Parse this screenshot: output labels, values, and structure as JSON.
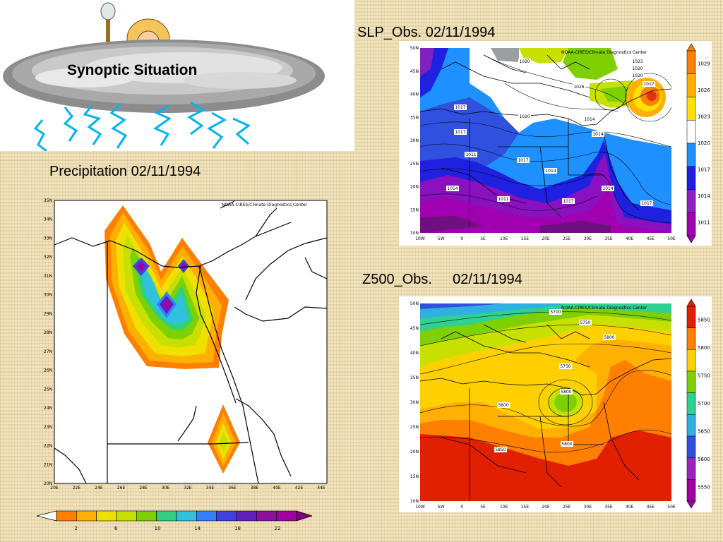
{
  "header": {
    "title": "Synoptic Situation"
  },
  "captions": {
    "precip": "Precipitation 02/11/1994",
    "slp": "SLP_Obs. 02/11/1994",
    "z500_left": "Z500_Obs.",
    "z500_right": "02/11/1994"
  },
  "credit": "NOAA-CIRES/Climate Diagnostics Center",
  "precip_map": {
    "y_ticks": [
      "35N",
      "34N",
      "33N",
      "32N",
      "31N",
      "30N",
      "29N",
      "28N",
      "27N",
      "26N",
      "25N",
      "24N",
      "23N",
      "22N",
      "21N",
      "20N"
    ],
    "x_ticks": [
      "20E",
      "22E",
      "24E",
      "26E",
      "28E",
      "30E",
      "32E",
      "34E",
      "36E",
      "38E",
      "40E",
      "42E",
      "44E"
    ],
    "colorbar_labels": [
      "2",
      "6",
      "10",
      "14",
      "18",
      "22"
    ],
    "colors": [
      "#ff7f00",
      "#ffb000",
      "#f0e000",
      "#c8e000",
      "#7fd000",
      "#30d07f",
      "#30c0e0",
      "#3080ff",
      "#4040e0",
      "#6020c0",
      "#8a10a0",
      "#a000a0"
    ]
  },
  "slp_map": {
    "y_ticks": [
      "50N",
      "45N",
      "40N",
      "35N",
      "30N",
      "25N",
      "20N",
      "15N",
      "10N"
    ],
    "x_ticks": [
      "10W",
      "5W",
      "0",
      "5E",
      "10E",
      "15E",
      "20E",
      "25E",
      "30E",
      "35E",
      "40E",
      "45E",
      "50E"
    ],
    "colorbar_labels": [
      "1029",
      "1026",
      "1023",
      "1020",
      "1017",
      "1014",
      "1011"
    ],
    "colorbar_colors": [
      "#ff7f00",
      "#ffb000",
      "#ffe000",
      "#ffffff",
      "#1e90ff",
      "#2020e0",
      "#9020c0",
      "#a000b0"
    ],
    "contour_labels": [
      "1023",
      "1020",
      "1020",
      "1026",
      "1017",
      "1020",
      "1017",
      "1020",
      "1017",
      "1014",
      "1014",
      "1017",
      "1011",
      "1014",
      "1014",
      "1011",
      "1017",
      "1014",
      "1017"
    ]
  },
  "z500_map": {
    "y_ticks": [
      "50N",
      "45N",
      "40N",
      "35N",
      "30N",
      "25N",
      "20N",
      "15N",
      "10N"
    ],
    "x_ticks": [
      "10W",
      "5W",
      "0",
      "5E",
      "10E",
      "15E",
      "20E",
      "25E",
      "30E",
      "35E",
      "40E",
      "45E",
      "50E"
    ],
    "colorbar_labels": [
      "5850",
      "5800",
      "5750",
      "5700",
      "5650",
      "5600",
      "5550"
    ],
    "colorbar_colors": [
      "#e02000",
      "#ff7f00",
      "#ffd000",
      "#7fd000",
      "#30d090",
      "#30b0e0",
      "#3050e0",
      "#a020c0",
      "#a000a0"
    ],
    "contour_labels": [
      "5700",
      "5750",
      "5800",
      "5800",
      "5750",
      "5800",
      "5800",
      "5850"
    ]
  }
}
